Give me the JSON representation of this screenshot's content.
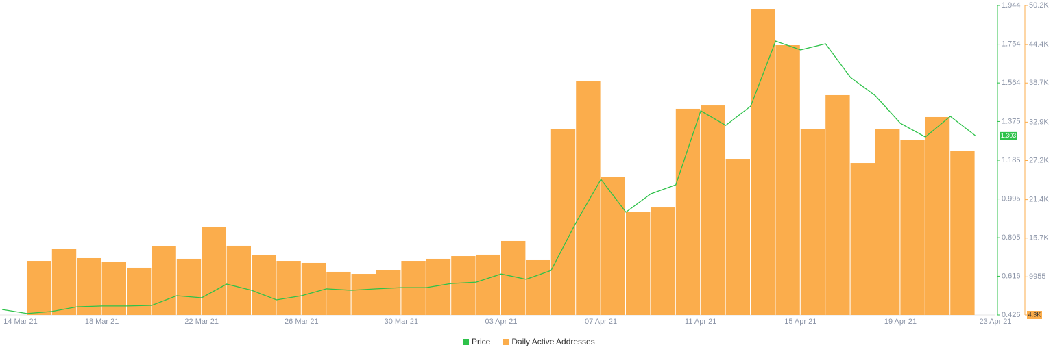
{
  "chart_data": {
    "type": "bar-line",
    "categories": [
      "14 Mar 21",
      null,
      null,
      null,
      "18 Mar 21",
      null,
      null,
      null,
      "22 Mar 21",
      null,
      null,
      null,
      "26 Mar 21",
      null,
      null,
      null,
      "30 Mar 21",
      null,
      null,
      null,
      "03 Apr 21",
      null,
      null,
      null,
      "07 Apr 21",
      null,
      null,
      null,
      "11 Apr 21",
      null,
      null,
      null,
      "15 Apr 21",
      null,
      null,
      null,
      "19 Apr 21",
      null,
      null,
      null,
      "23 Apr 21"
    ],
    "series": [
      {
        "name": "Price",
        "color": "#2ec24a",
        "axis": "y",
        "kind": "line",
        "values": [
          0.453,
          0.433,
          0.443,
          0.466,
          0.47,
          0.47,
          0.473,
          0.52,
          0.51,
          0.577,
          0.547,
          0.5,
          0.52,
          0.554,
          0.547,
          0.554,
          0.56,
          0.56,
          0.58,
          0.587,
          0.627,
          0.601,
          0.644,
          0.879,
          1.091,
          0.93,
          1.02,
          1.064,
          1.427,
          1.356,
          1.45,
          1.769,
          1.726,
          1.756,
          1.591,
          1.501,
          1.366,
          1.299,
          1.4,
          1.306,
          null
        ]
      },
      {
        "name": "Daily Active Addresses",
        "color": "#fbad4c",
        "axis": "y2",
        "kind": "bar",
        "values": [
          null,
          12320,
          14050,
          12730,
          12220,
          11310,
          14455,
          12630,
          17400,
          14560,
          13135,
          12320,
          12020,
          10700,
          10390,
          11000,
          12320,
          12630,
          13030,
          13240,
          15270,
          12425,
          31920,
          39030,
          24810,
          19630,
          20240,
          34870,
          35370,
          27450,
          49690,
          44310,
          31920,
          36900,
          26840,
          31920,
          30200,
          33650,
          28570,
          null,
          null
        ]
      }
    ],
    "ylim": [
      0.426,
      1.944
    ],
    "yticks": [
      0.426,
      0.616,
      0.805,
      0.995,
      1.185,
      1.375,
      1.564,
      1.754,
      1.944
    ],
    "y2lim": [
      4300,
      50200
    ],
    "y2ticks": [
      {
        "value": 4300,
        "label": "4.3K"
      },
      9955,
      {
        "value": 15700,
        "label": "15.7K"
      },
      {
        "value": 21400,
        "label": "21.4K"
      },
      {
        "value": 27200,
        "label": "27.2K"
      },
      {
        "value": 32900,
        "label": "32.9K"
      },
      {
        "value": 38700,
        "label": "38.7K"
      },
      {
        "value": 44400,
        "label": "44.4K"
      },
      {
        "value": 50200,
        "label": "50.2K"
      }
    ],
    "last_price": 1.303,
    "legend": "bottom"
  }
}
